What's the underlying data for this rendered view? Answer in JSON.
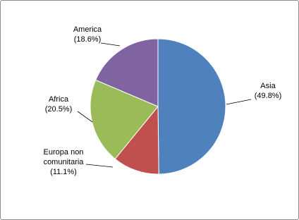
{
  "chart_data": {
    "type": "pie",
    "categories": [
      "Asia",
      "Europa non comunitaria",
      "Africa",
      "America"
    ],
    "values": [
      49.8,
      11.1,
      20.5,
      18.6
    ],
    "value_labels": [
      "(49.8%)",
      "(11.1%)",
      "(20.5%)",
      "(18.6%)"
    ],
    "colors": [
      "#4f81bd",
      "#c0504d",
      "#9bbb59",
      "#8064a2"
    ]
  }
}
